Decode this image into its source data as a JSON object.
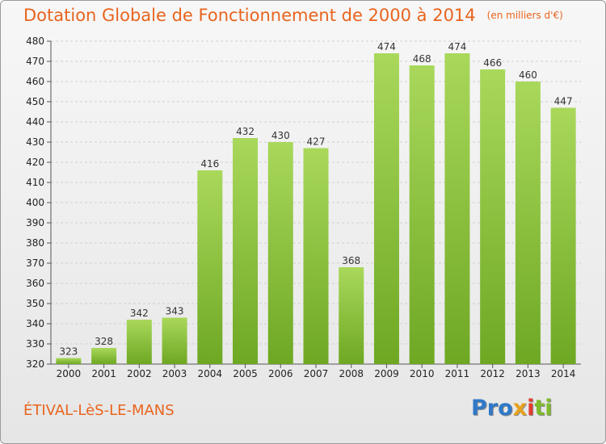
{
  "header": {
    "title": "Dotation Globale de Fonctionnement de 2000 à 2014",
    "unit": "(en milliers d'€)"
  },
  "footer": {
    "commune": "ÉTIVAL-LèS-LE-MANS",
    "logo": [
      "Pro",
      "x",
      "i",
      "ti"
    ]
  },
  "chart_data": {
    "type": "bar",
    "title": "Dotation Globale de Fonctionnement de 2000 à 2014",
    "subtitle": "(en milliers d'€)",
    "categories": [
      "2000",
      "2001",
      "2002",
      "2003",
      "2004",
      "2005",
      "2006",
      "2007",
      "2008",
      "2009",
      "2010",
      "2011",
      "2012",
      "2013",
      "2014"
    ],
    "values": [
      323,
      328,
      342,
      343,
      416,
      432,
      430,
      427,
      368,
      474,
      468,
      474,
      466,
      460,
      447
    ],
    "ylim": [
      320,
      480
    ],
    "yticks": [
      320,
      330,
      340,
      350,
      360,
      370,
      380,
      390,
      400,
      410,
      420,
      430,
      440,
      450,
      460,
      470,
      480
    ],
    "grid": true,
    "bar_color": "#7cb82f",
    "bar_color_light": "#a8d65a"
  }
}
